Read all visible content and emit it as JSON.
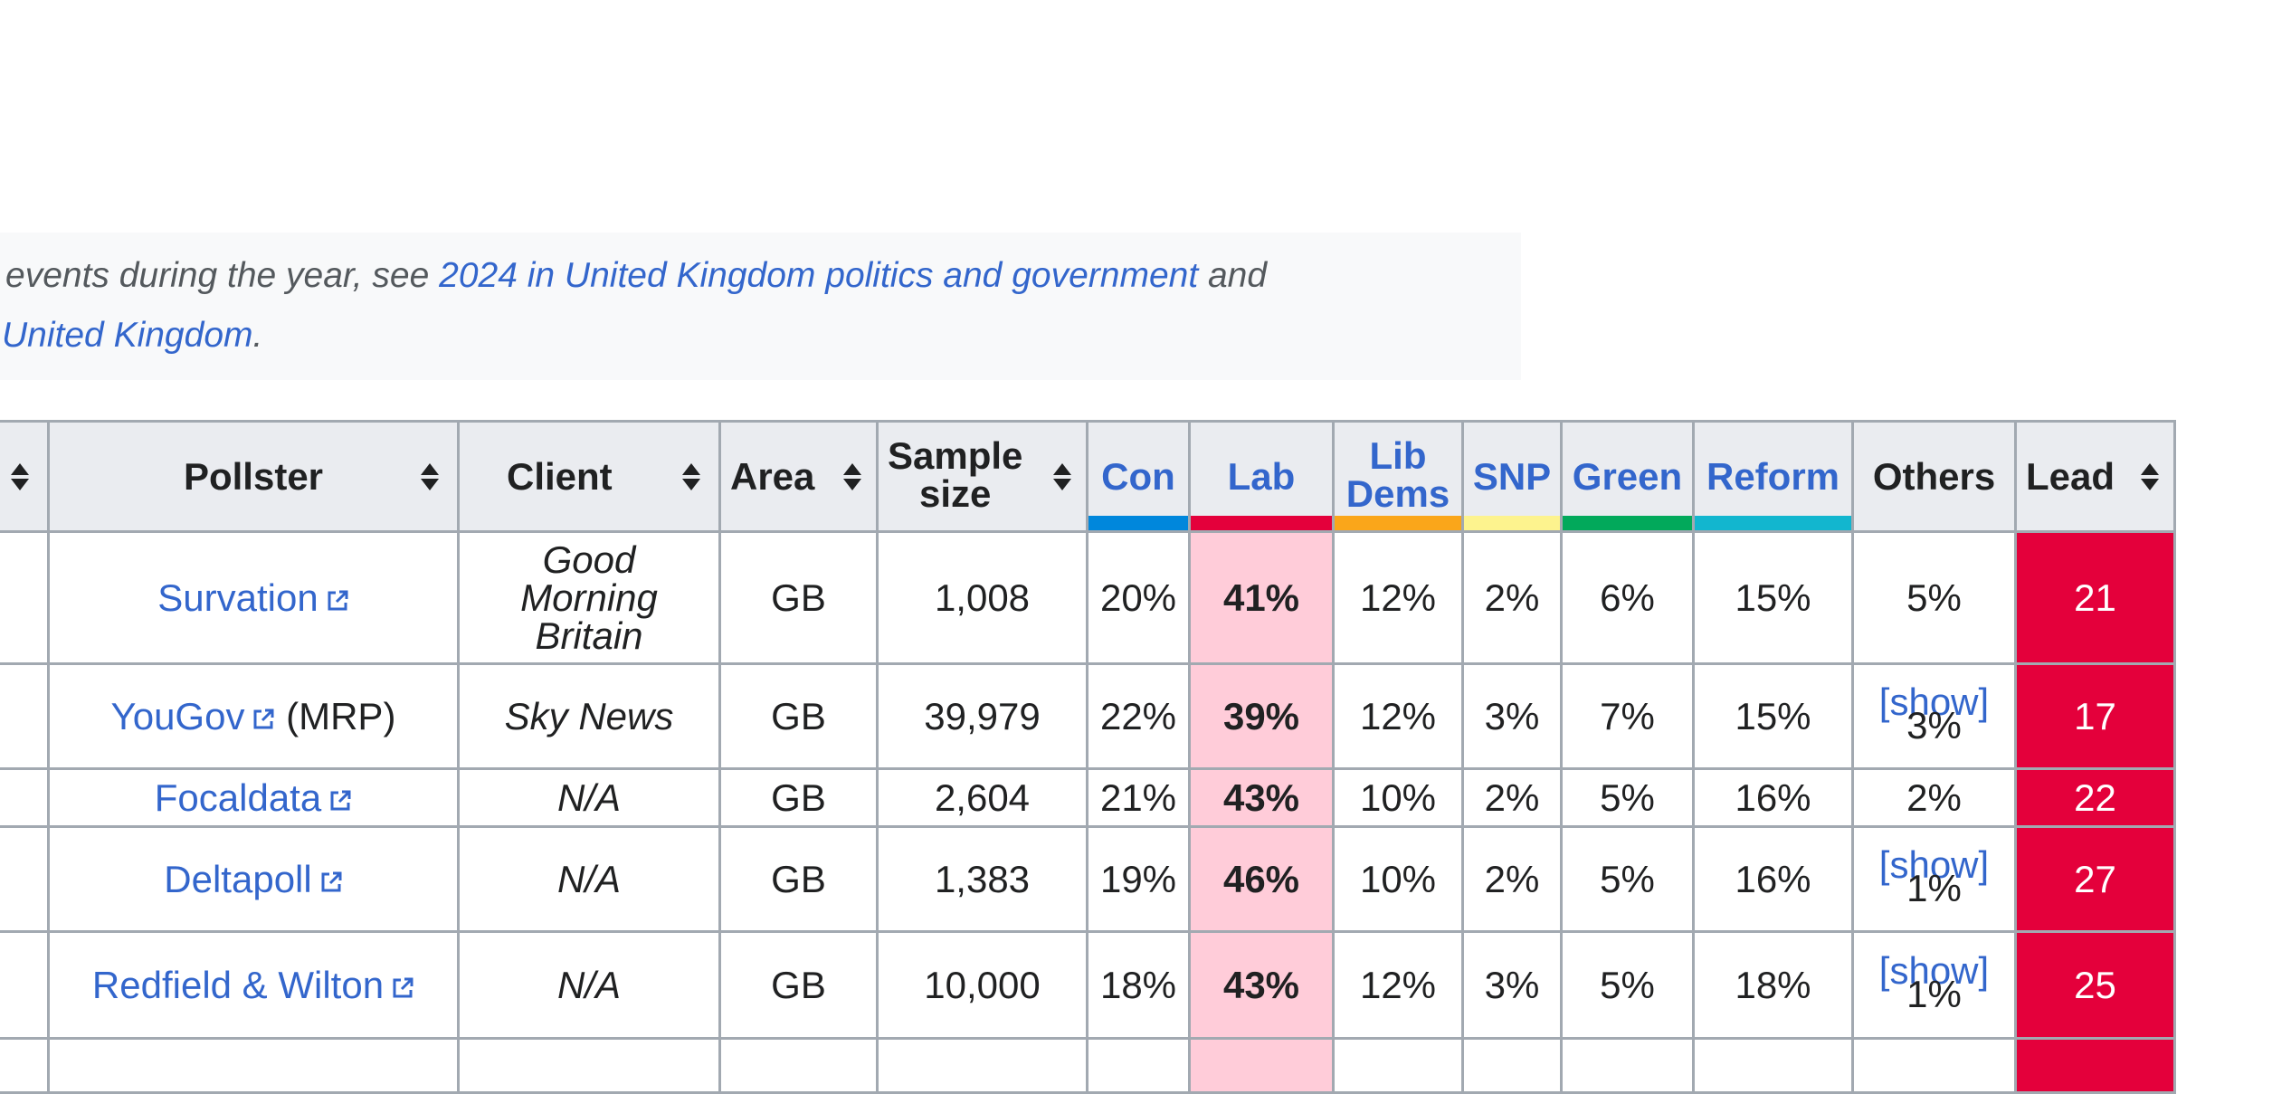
{
  "hatnote": {
    "line1_prefix": "events during the year, see ",
    "line1_link": "2024 in United Kingdom politics and government",
    "line1_suffix": " and",
    "line2_link": "United Kingdom",
    "line2_suffix": "."
  },
  "table": {
    "headers": {
      "pollster": "Pollster",
      "client": "Client",
      "area": "Area",
      "sample_line1": "Sample",
      "sample_line2": "size",
      "con": "Con",
      "lab": "Lab",
      "lib_line1": "Lib",
      "lib_line2": "Dems",
      "snp": "SNP",
      "green": "Green",
      "reform": "Reform",
      "others": "Others",
      "lead": "Lead"
    },
    "party_colors": {
      "con": "#0087dc",
      "lab": "#e4003b",
      "lib": "#faa61a",
      "snp": "#fdf38e",
      "green": "#02a95b",
      "reform": "#12b6cf"
    },
    "rows": [
      {
        "pollster": "Survation",
        "pollster_suffix": "",
        "client_lines": [
          "Good",
          "Morning",
          "Britain"
        ],
        "area": "GB",
        "sample": "1,008",
        "con": "20%",
        "lab": "41%",
        "lib": "12%",
        "snp": "2%",
        "green": "6%",
        "reform": "15%",
        "others": "5%",
        "others_show": "",
        "lead": "21"
      },
      {
        "pollster": "YouGov",
        "pollster_suffix": " (MRP)",
        "client_lines": [
          "Sky News"
        ],
        "area": "GB",
        "sample": "39,979",
        "con": "22%",
        "lab": "39%",
        "lib": "12%",
        "snp": "3%",
        "green": "7%",
        "reform": "15%",
        "others": "3%",
        "others_show": "[show]",
        "lead": "17"
      },
      {
        "pollster": "Focaldata",
        "pollster_suffix": "",
        "client_lines": [
          "N/A"
        ],
        "area": "GB",
        "sample": "2,604",
        "con": "21%",
        "lab": "43%",
        "lib": "10%",
        "snp": "2%",
        "green": "5%",
        "reform": "16%",
        "others": "2%",
        "others_show": "",
        "lead": "22"
      },
      {
        "pollster": "Deltapoll",
        "pollster_suffix": "",
        "client_lines": [
          "N/A"
        ],
        "area": "GB",
        "sample": "1,383",
        "con": "19%",
        "lab": "46%",
        "lib": "10%",
        "snp": "2%",
        "green": "5%",
        "reform": "16%",
        "others": "1%",
        "others_show": "[show]",
        "lead": "27"
      },
      {
        "pollster": "Redfield & Wilton",
        "pollster_suffix": "",
        "client_lines": [
          "N/A"
        ],
        "area": "GB",
        "sample": "10,000",
        "con": "18%",
        "lab": "43%",
        "lib": "12%",
        "snp": "3%",
        "green": "5%",
        "reform": "18%",
        "others": "1%",
        "others_show": "[show]",
        "lead": "25"
      },
      {
        "pollster": "",
        "pollster_suffix": "",
        "client_lines": [
          ""
        ],
        "area": "",
        "sample": "",
        "con": "",
        "lab": "",
        "lib": "",
        "snp": "",
        "green": "",
        "reform": "",
        "others": "",
        "others_show": "",
        "lead": ""
      }
    ]
  }
}
